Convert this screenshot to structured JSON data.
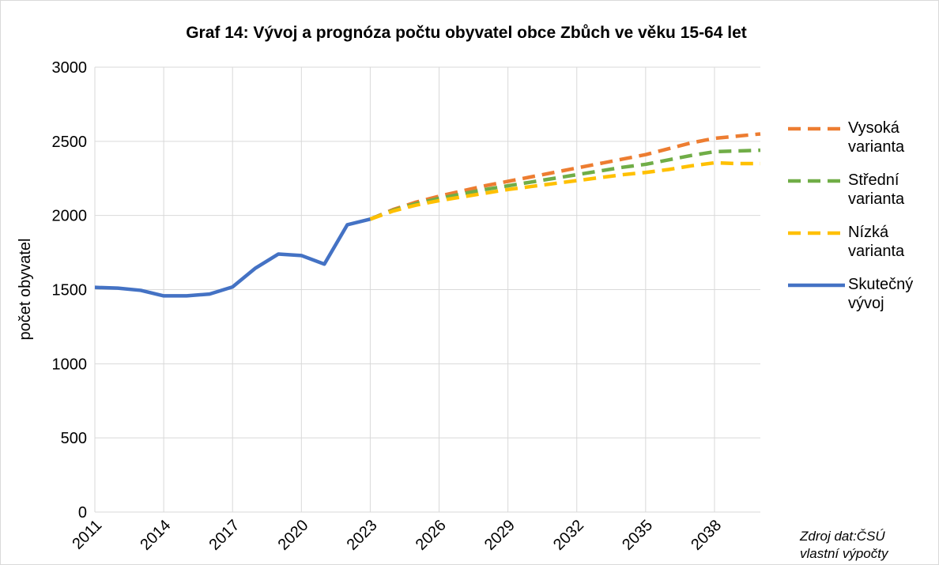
{
  "chart_data": {
    "type": "line",
    "title": "Graf 14: Vývoj a prognóza počtu obyvatel obce Zbůch ve věku 15-64 let",
    "y_label": "počet obyvatel",
    "source": "Zdroj dat:ČSÚ vlastní výpočty",
    "x": [
      2011,
      2012,
      2013,
      2014,
      2015,
      2016,
      2017,
      2018,
      2019,
      2020,
      2021,
      2022,
      2023,
      2024,
      2025,
      2026,
      2027,
      2028,
      2029,
      2030,
      2031,
      2032,
      2033,
      2034,
      2035,
      2036,
      2037,
      2038,
      2039,
      2040
    ],
    "xlim": [
      2011,
      2040
    ],
    "xticks": [
      2011,
      2014,
      2017,
      2020,
      2023,
      2026,
      2029,
      2032,
      2035,
      2038
    ],
    "ylim": [
      0,
      3000
    ],
    "yticks": [
      0,
      500,
      1000,
      1500,
      2000,
      2500,
      3000
    ],
    "grid": true,
    "series": [
      {
        "name": "Vysoká varianta",
        "color": "#ed7d31",
        "dashed": true,
        "values": [
          null,
          null,
          null,
          null,
          null,
          null,
          null,
          null,
          null,
          null,
          null,
          null,
          1975,
          2040,
          2090,
          2130,
          2165,
          2200,
          2230,
          2260,
          2290,
          2320,
          2350,
          2380,
          2410,
          2450,
          2490,
          2520,
          2535,
          2550
        ]
      },
      {
        "name": "Střední varianta",
        "color": "#70ad47",
        "dashed": true,
        "values": [
          null,
          null,
          null,
          null,
          null,
          null,
          null,
          null,
          null,
          null,
          null,
          null,
          1975,
          2035,
          2080,
          2115,
          2145,
          2175,
          2200,
          2225,
          2250,
          2275,
          2300,
          2325,
          2345,
          2375,
          2405,
          2430,
          2435,
          2440
        ]
      },
      {
        "name": "Nízká varianta",
        "color": "#ffc000",
        "dashed": true,
        "values": [
          null,
          null,
          null,
          null,
          null,
          null,
          null,
          null,
          null,
          null,
          null,
          null,
          1975,
          2030,
          2070,
          2100,
          2125,
          2150,
          2175,
          2195,
          2215,
          2235,
          2255,
          2275,
          2290,
          2310,
          2335,
          2355,
          2350,
          2350
        ]
      },
      {
        "name": "Skutečný vývoj",
        "color": "#4472c4",
        "dashed": false,
        "values": [
          1515,
          1510,
          1495,
          1458,
          1458,
          1470,
          1518,
          1645,
          1740,
          1730,
          1672,
          1937,
          1975,
          null,
          null,
          null,
          null,
          null,
          null,
          null,
          null,
          null,
          null,
          null,
          null,
          null,
          null,
          null,
          null,
          null
        ]
      }
    ],
    "legend": "right"
  }
}
